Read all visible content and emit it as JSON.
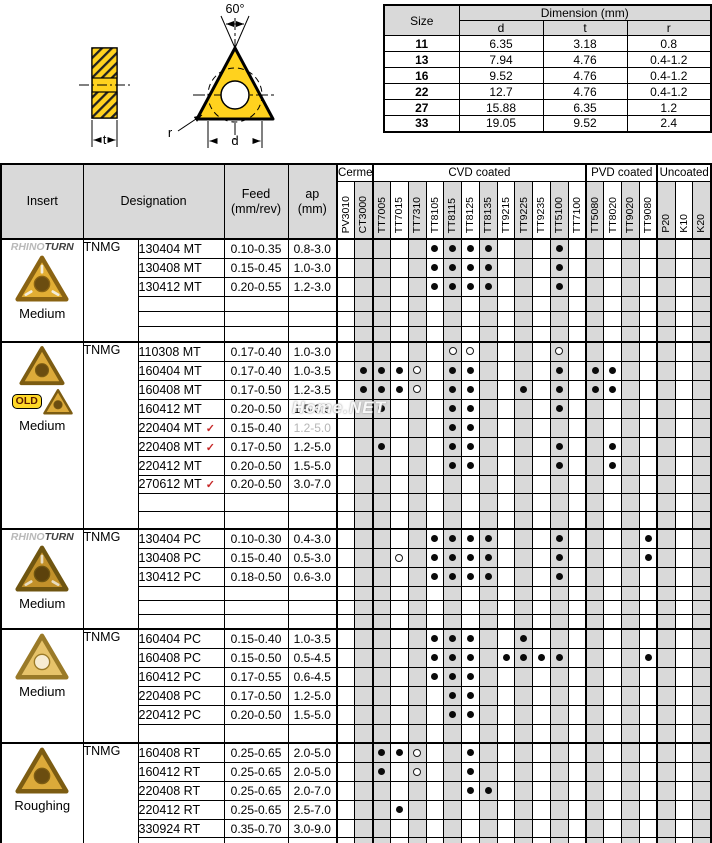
{
  "diagram": {
    "angle_label": "60°",
    "t_label": "t",
    "d_label": "d",
    "r_label": "r"
  },
  "watermark": "Home.NET",
  "size_table": {
    "size_header": "Size",
    "title": "Dimension (mm)",
    "col_headers": [
      "d",
      "t",
      "r"
    ],
    "rows": [
      {
        "size": "11",
        "d": "6.35",
        "t": "3.18",
        "r": "0.8"
      },
      {
        "size": "13",
        "d": "7.94",
        "t": "4.76",
        "r": "0.4-1.2"
      },
      {
        "size": "16",
        "d": "9.52",
        "t": "4.76",
        "r": "0.4-1.2"
      },
      {
        "size": "22",
        "d": "12.7",
        "t": "4.76",
        "r": "0.4-1.2"
      },
      {
        "size": "27",
        "d": "15.88",
        "t": "6.35",
        "r": "1.2"
      },
      {
        "size": "33",
        "d": "19.05",
        "t": "9.52",
        "r": "2.4"
      }
    ]
  },
  "main_table": {
    "headers": {
      "insert": "Insert",
      "designation": "Designation",
      "feed1": "Feed",
      "feed2": "(mm/rev)",
      "ap1": "ap",
      "ap2": "(mm)"
    },
    "groups": [
      {
        "label": "Cermet",
        "grades": [
          "PV3010",
          "CT3000"
        ]
      },
      {
        "label": "CVD coated",
        "grades": [
          "TT7005",
          "TT7015",
          "TT7310",
          "TT8105",
          "TT8115",
          "TT8125",
          "TT8135",
          "TT9215",
          "TT9225",
          "TT9235",
          "TT5100",
          "TT7100"
        ]
      },
      {
        "label": "PVD coated",
        "grades": [
          "TT5080",
          "TT8020",
          "TT9020",
          "TT9080"
        ]
      },
      {
        "label": "Uncoated",
        "grades": [
          "P20",
          "K10",
          "K20"
        ]
      }
    ],
    "shaded_grades": [
      "CT3000",
      "TT7005",
      "TT7310",
      "TT8115",
      "TT8135",
      "TT9225",
      "TT5100",
      "TT5080",
      "TT9020",
      "P20",
      "K20"
    ],
    "blocks": [
      {
        "brand": {
          "light": "RHINO",
          "dark": "TURN"
        },
        "badge": null,
        "caption": "Medium",
        "style": "cb",
        "filler": [
          15,
          15,
          15
        ],
        "rows": [
          {
            "prefix": "TNMG",
            "code": "130404 MT",
            "feed": "0.10-0.35",
            "ap": "0.8-3.0",
            "filled": [
              "TT8105",
              "TT8115",
              "TT8125",
              "TT8135",
              "TT5100"
            ],
            "open": []
          },
          {
            "code": "130408 MT",
            "feed": "0.15-0.45",
            "ap": "1.0-3.0",
            "filled": [
              "TT8105",
              "TT8115",
              "TT8125",
              "TT8135",
              "TT5100"
            ],
            "open": []
          },
          {
            "code": "130412 MT",
            "feed": "0.20-0.55",
            "ap": "1.2-3.0",
            "filled": [
              "TT8105",
              "TT8115",
              "TT8125",
              "TT8135",
              "TT5100"
            ],
            "open": []
          }
        ]
      },
      {
        "brand": null,
        "badge": "OLD",
        "caption": "Medium",
        "style": "plain",
        "filler": [
          18,
          18
        ],
        "rows": [
          {
            "prefix": "TNMG",
            "code": "110308 MT",
            "feed": "0.17-0.40",
            "ap": "1.0-3.0",
            "filled": [],
            "open": [
              "TT8115",
              "TT8125",
              "TT5100"
            ]
          },
          {
            "code": "160404 MT",
            "feed": "0.17-0.40",
            "ap": "1.0-3.5",
            "filled": [
              "CT3000",
              "TT7005",
              "TT7015",
              "TT8115",
              "TT8125",
              "TT5100",
              "TT5080",
              "TT8020"
            ],
            "open": [
              "TT7310"
            ]
          },
          {
            "code": "160408 MT",
            "feed": "0.17-0.50",
            "ap": "1.2-3.5",
            "filled": [
              "CT3000",
              "TT7005",
              "TT7015",
              "TT8115",
              "TT8125",
              "TT9225",
              "TT5100",
              "TT5080",
              "TT8020"
            ],
            "open": [
              "TT7310"
            ]
          },
          {
            "code": "160412 MT",
            "feed": "0.20-0.50",
            "ap": "1.5-3.5",
            "filled": [
              "TT7005",
              "TT8115",
              "TT8125",
              "TT5100"
            ],
            "open": []
          },
          {
            "code": "220404 MT",
            "check": true,
            "feed": "0.15-0.40",
            "ap": "1.2-5.0",
            "ap_faded": true,
            "filled": [
              "TT8115",
              "TT8125"
            ],
            "open": []
          },
          {
            "code": "220408 MT",
            "check": true,
            "feed": "0.17-0.50",
            "ap": "1.2-5.0",
            "filled": [
              "TT7005",
              "TT8115",
              "TT8125",
              "TT5100",
              "TT8020"
            ],
            "open": []
          },
          {
            "code": "220412 MT",
            "feed": "0.20-0.50",
            "ap": "1.5-5.0",
            "filled": [
              "TT8115",
              "TT8125",
              "TT5100",
              "TT8020"
            ],
            "open": []
          },
          {
            "code": "270612 MT",
            "check": true,
            "feed": "0.20-0.50",
            "ap": "3.0-7.0",
            "filled": [],
            "open": []
          }
        ]
      },
      {
        "brand": {
          "light": "RHINO",
          "dark": "TURN"
        },
        "badge": null,
        "caption": "Medium",
        "style": "cbdark",
        "filler": [
          14,
          14,
          14
        ],
        "rows": [
          {
            "prefix": "TNMG",
            "code": "130404 PC",
            "feed": "0.10-0.30",
            "ap": "0.4-3.0",
            "filled": [
              "TT8105",
              "TT8115",
              "TT8125",
              "TT8135",
              "TT5100",
              "TT9080"
            ],
            "open": []
          },
          {
            "code": "130408 PC",
            "feed": "0.15-0.40",
            "ap": "0.5-3.0",
            "filled": [
              "TT8105",
              "TT8115",
              "TT8125",
              "TT8135",
              "TT5100",
              "TT9080"
            ],
            "open": [
              "TT7015"
            ]
          },
          {
            "code": "130412 PC",
            "feed": "0.18-0.50",
            "ap": "0.6-3.0",
            "filled": [
              "TT8105",
              "TT8115",
              "TT8125",
              "TT8135",
              "TT5100"
            ],
            "open": []
          }
        ]
      },
      {
        "brand": null,
        "badge": null,
        "caption": "Medium",
        "style": "light",
        "filler": [
          19
        ],
        "rows": [
          {
            "prefix": "TNMG",
            "code": "160404 PC",
            "feed": "0.15-0.40",
            "ap": "1.0-3.5",
            "filled": [
              "TT8105",
              "TT8115",
              "TT8125",
              "TT9225"
            ],
            "open": []
          },
          {
            "code": "160408 PC",
            "feed": "0.15-0.50",
            "ap": "0.5-4.5",
            "filled": [
              "TT8105",
              "TT8115",
              "TT8125",
              "TT9215",
              "TT9225",
              "TT9235",
              "TT5100",
              "TT9080"
            ],
            "open": []
          },
          {
            "code": "160412 PC",
            "feed": "0.17-0.55",
            "ap": "0.6-4.5",
            "filled": [
              "TT8105",
              "TT8115",
              "TT8125"
            ],
            "open": []
          },
          {
            "code": "220408 PC",
            "feed": "0.17-0.50",
            "ap": "1.2-5.0",
            "filled": [
              "TT8115",
              "TT8125"
            ],
            "open": []
          },
          {
            "code": "220412 PC",
            "feed": "0.20-0.50",
            "ap": "1.5-5.0",
            "filled": [
              "TT8115",
              "TT8125"
            ],
            "open": []
          }
        ]
      },
      {
        "brand": null,
        "badge": null,
        "caption": "Roughing",
        "style": "plain",
        "filler": [
          14,
          14
        ],
        "rows": [
          {
            "prefix": "TNMG",
            "code": "160408 RT",
            "feed": "0.25-0.65",
            "ap": "2.0-5.0",
            "filled": [
              "TT7005",
              "TT7015",
              "TT8125"
            ],
            "open": [
              "TT7310"
            ]
          },
          {
            "code": "160412 RT",
            "feed": "0.25-0.65",
            "ap": "2.0-5.0",
            "filled": [
              "TT7005",
              "TT8125"
            ],
            "open": [
              "TT7310"
            ]
          },
          {
            "code": "220408 RT",
            "feed": "0.25-0.65",
            "ap": "2.0-7.0",
            "filled": [
              "TT8125",
              "TT8135"
            ],
            "open": []
          },
          {
            "code": "220412 RT",
            "feed": "0.25-0.65",
            "ap": "2.5-7.0",
            "filled": [
              "TT7015"
            ],
            "open": []
          },
          {
            "code": "330924 RT",
            "feed": "0.35-0.70",
            "ap": "3.0-9.0",
            "filled": [],
            "open": []
          }
        ]
      }
    ]
  }
}
